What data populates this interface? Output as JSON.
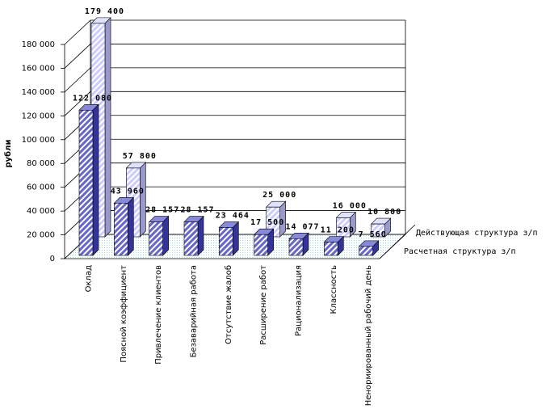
{
  "chart_data": {
    "type": "bar3d",
    "y_label": "рубли",
    "categories": [
      "Оклад",
      "Поясной коэффициент",
      "Привлечение клиентов",
      "Безаварийная работа",
      "Отсутствие жалоб",
      "Расширение работ",
      "Рационализация",
      "Классность",
      "Ненормированный рабочий день"
    ],
    "series": [
      {
        "name": "Расчетная структура з/п",
        "color": "#6666cc",
        "values": [
          122080,
          43960,
          28157,
          28157,
          23464,
          17500,
          14077,
          11200,
          7560
        ],
        "value_labels": [
          "122 080",
          "43 960",
          "28 157",
          "28 157",
          "23 464",
          "17 500",
          "14 077",
          "11 200",
          "7 560"
        ]
      },
      {
        "name": "Действующая структура з/п",
        "color": "#ccccff",
        "values": [
          179400,
          57800,
          null,
          null,
          null,
          25000,
          null,
          16000,
          10800
        ],
        "value_labels": [
          "179 400",
          "57 800",
          null,
          null,
          null,
          "25 000",
          null,
          "16 000",
          "10 800"
        ]
      }
    ],
    "ylim": [
      0,
      180000
    ],
    "yticks": [
      0,
      {
        "value": 20000,
        "label": "20 000"
      },
      {
        "value": 40000,
        "label": "40 000"
      },
      {
        "value": 60000,
        "label": "60 000"
      },
      {
        "value": 80000,
        "label": "80 000"
      },
      {
        "value": 100000,
        "label": "100 000"
      },
      {
        "value": 120000,
        "label": "120 000"
      },
      {
        "value": 140000,
        "label": "140 000"
      },
      {
        "value": 160000,
        "label": "160 000"
      },
      {
        "value": 180000,
        "label": "180 000"
      }
    ],
    "grid": true
  }
}
